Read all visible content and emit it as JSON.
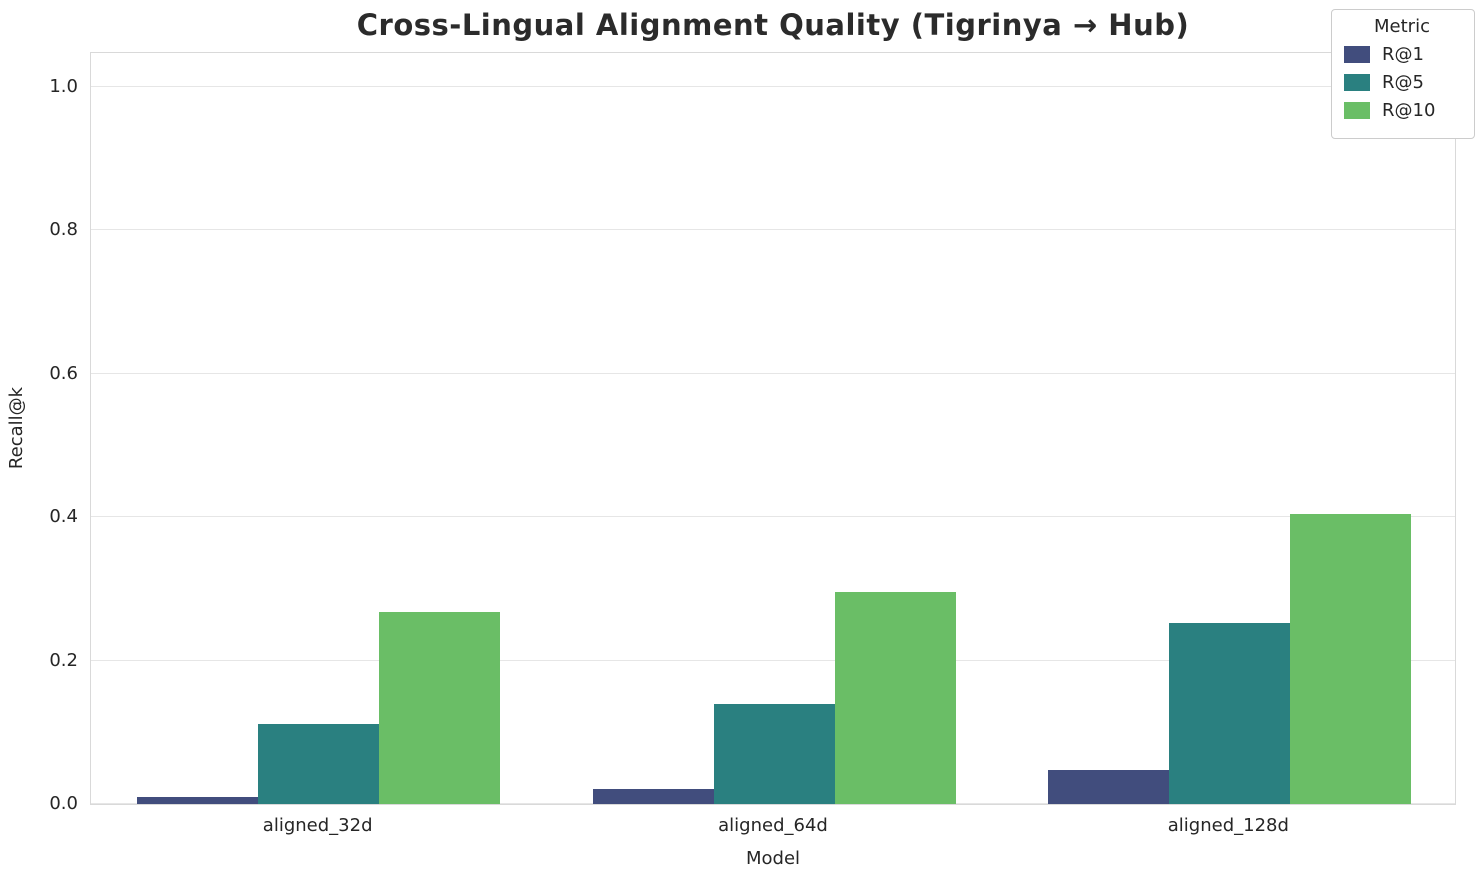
{
  "title": "Cross-Lingual Alignment Quality (Tigrinya → Hub)",
  "chart_data": {
    "type": "bar",
    "title": "Cross-Lingual Alignment Quality (Tigrinya → Hub)",
    "xlabel": "Model",
    "ylabel": "Recall@k",
    "categories": [
      "aligned_32d",
      "aligned_64d",
      "aligned_128d"
    ],
    "series": [
      {
        "name": "R@1",
        "color": "#414d7d",
        "values": [
          0.01,
          0.021,
          0.047
        ]
      },
      {
        "name": "R@5",
        "color": "#2a8080",
        "values": [
          0.112,
          0.139,
          0.252
        ]
      },
      {
        "name": "R@10",
        "color": "#6abe66",
        "values": [
          0.268,
          0.296,
          0.405
        ]
      }
    ],
    "ylim": [
      0,
      1.0
    ],
    "yticks": [
      0.0,
      0.2,
      0.4,
      0.6,
      0.8,
      1.0
    ],
    "grid": true,
    "legend_title": "Metric",
    "legend_position": "upper right",
    "colors": {
      "grid": "#e6e6e6",
      "spine": "#d9d9d9",
      "text": "#262626"
    }
  }
}
